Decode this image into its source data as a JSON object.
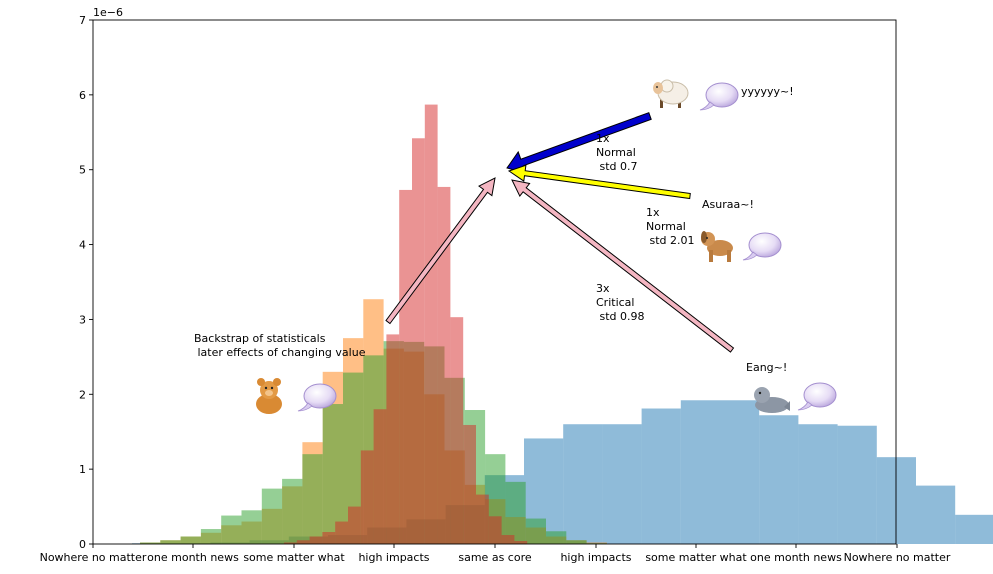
{
  "chart_data": {
    "type": "histogram",
    "scale_label": "1e−6",
    "ylim": [
      0,
      7
    ],
    "yticks": [
      0,
      1,
      2,
      3,
      4,
      5,
      6,
      7
    ],
    "x_tick_labels": [
      "Nowhere no matter",
      "one month news",
      "some matter what",
      "high impacts",
      "same as core",
      "high impacts",
      "some matter what",
      "one month news",
      "Nowhere no matter"
    ],
    "grid": false,
    "legend": "none",
    "series": [
      {
        "color": "#1f77b4",
        "values": [
          0.01,
          0.01,
          0.02,
          0.05,
          0.1,
          0.12,
          0.22,
          0.33,
          0.52,
          0.92,
          1.41,
          1.6,
          1.6,
          1.81,
          1.92,
          1.92,
          1.72,
          1.6,
          1.58,
          1.16,
          0.78,
          0.39,
          0.2,
          0.05,
          0.01,
          0.01
        ]
      },
      {
        "color": "#ff7f0e",
        "values": [
          0.02,
          0.05,
          0.1,
          0.15,
          0.25,
          0.3,
          0.47,
          0.77,
          1.36,
          2.3,
          2.75,
          3.27,
          2.61,
          2.57,
          2.0,
          1.25,
          0.79,
          0.6,
          0.36,
          0.22,
          0.1,
          0.05,
          0.02
        ]
      },
      {
        "color": "#2ca02c",
        "values": [
          0.02,
          0.05,
          0.1,
          0.2,
          0.38,
          0.45,
          0.74,
          0.87,
          1.2,
          1.87,
          2.29,
          2.52,
          2.71,
          2.7,
          2.64,
          2.22,
          1.79,
          1.2,
          0.83,
          0.34,
          0.17,
          0.05,
          0.01
        ]
      },
      {
        "color": "#d62728",
        "values": [
          0.02,
          0.05,
          0.1,
          0.16,
          0.3,
          0.5,
          1.25,
          1.8,
          2.8,
          4.73,
          5.42,
          5.87,
          4.77,
          3.03,
          1.59,
          0.66,
          0.37,
          0.12,
          0.04
        ]
      }
    ],
    "annotations": [
      "1x\nNormal\n std 0.7",
      "yyyyyy~!",
      "Asuraa~!",
      "1x\nNormal\n std 2.01",
      "3x\nCritical\n std 0.98",
      "Eang~!",
      "Backstrap of statisticals\n later effects of changing value"
    ],
    "arrow_colors": [
      "#0000cc",
      "#ffff00",
      "#f4b6c2",
      "#f4b6c2"
    ],
    "icons": [
      "sheep-icon",
      "dog-icon",
      "teddy-bear-icon",
      "seal-icon",
      "speech-bubble-icon"
    ]
  }
}
